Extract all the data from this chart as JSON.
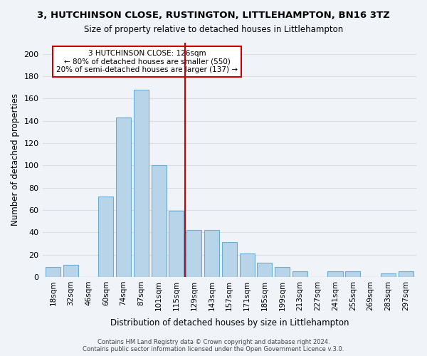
{
  "title": "3, HUTCHINSON CLOSE, RUSTINGTON, LITTLEHAMPTON, BN16 3TZ",
  "subtitle": "Size of property relative to detached houses in Littlehampton",
  "xlabel": "Distribution of detached houses by size in Littlehampton",
  "ylabel": "Number of detached properties",
  "footer_line1": "Contains HM Land Registry data © Crown copyright and database right 2024.",
  "footer_line2": "Contains public sector information licensed under the Open Government Licence v.3.0.",
  "bar_labels": [
    "18sqm",
    "32sqm",
    "46sqm",
    "60sqm",
    "74sqm",
    "87sqm",
    "101sqm",
    "115sqm",
    "129sqm",
    "143sqm",
    "157sqm",
    "171sqm",
    "185sqm",
    "199sqm",
    "213sqm",
    "227sqm",
    "241sqm",
    "255sqm",
    "269sqm",
    "283sqm",
    "297sqm"
  ],
  "bar_values": [
    9,
    11,
    0,
    72,
    143,
    168,
    100,
    59,
    42,
    42,
    31,
    21,
    13,
    9,
    5,
    0,
    5,
    5,
    0,
    3,
    5
  ],
  "bar_color": "#b8d4e8",
  "bar_edge_color": "#6aaed6",
  "vline_x": 7.5,
  "vline_color": "#cc0000",
  "ylim": [
    0,
    210
  ],
  "yticks": [
    0,
    20,
    40,
    60,
    80,
    100,
    120,
    140,
    160,
    180,
    200
  ],
  "annotation_title": "3 HUTCHINSON CLOSE: 126sqm",
  "annotation_line1": "← 80% of detached houses are smaller (550)",
  "annotation_line2": "20% of semi-detached houses are larger (137) →",
  "annotation_box_color": "#ffffff",
  "annotation_box_edge": "#cc0000",
  "grid_color": "#dddddd",
  "bg_color": "#f0f4f8"
}
